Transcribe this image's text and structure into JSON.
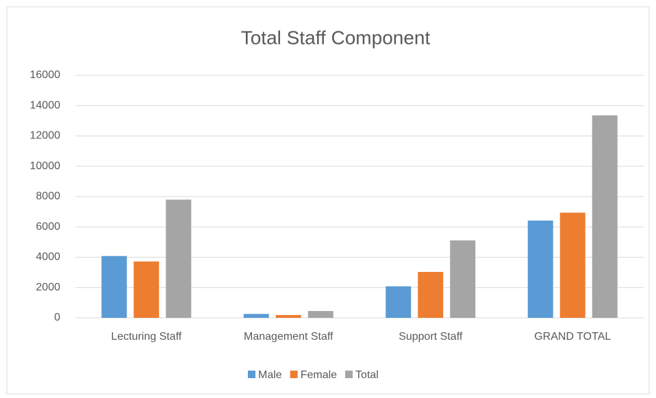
{
  "chart_data": {
    "type": "bar",
    "title": "Total Staff Component",
    "categories": [
      "Lecturing Staff",
      "Management Staff",
      "Support Staff",
      "GRAND TOTAL"
    ],
    "series": [
      {
        "name": "Male",
        "color": "#5b9bd5",
        "values": [
          4080,
          260,
          2080,
          6420
        ]
      },
      {
        "name": "Female",
        "color": "#ed7d31",
        "values": [
          3720,
          190,
          3030,
          6940
        ]
      },
      {
        "name": "Total",
        "color": "#a5a5a5",
        "values": [
          7800,
          450,
          5110,
          13360
        ]
      }
    ],
    "ylim": [
      0,
      16000
    ],
    "yticks": [
      0,
      2000,
      4000,
      6000,
      8000,
      10000,
      12000,
      14000,
      16000
    ],
    "grid": true,
    "legend": "bottom"
  }
}
